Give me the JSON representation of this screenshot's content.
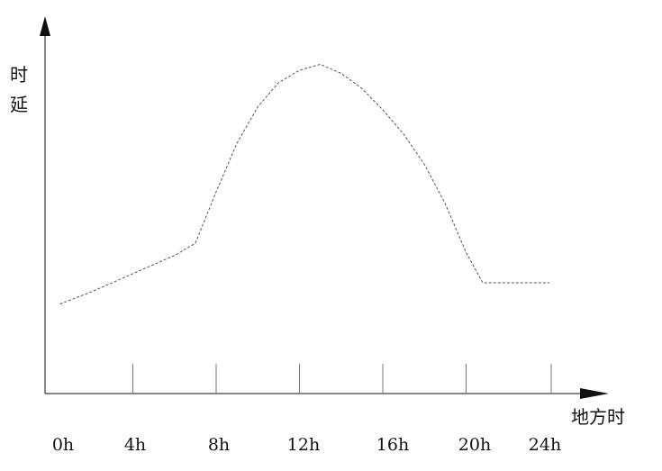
{
  "chart_data": {
    "type": "line",
    "title": "",
    "xlabel": "地方时",
    "ylabel": "时延",
    "x_tick_labels": [
      "0h",
      "4h",
      "8h",
      "12h",
      "16h",
      "20h",
      "24h"
    ],
    "x_ticks": [
      0,
      4,
      8,
      12,
      16,
      20,
      24
    ],
    "xlim": [
      0,
      24
    ],
    "y_ticks_shown": false,
    "grid": false,
    "legend": "none",
    "line_style": "dashed",
    "line_color": "#555555",
    "axis_color": "#111111",
    "series": [
      {
        "x": [
          0.5,
          2,
          4,
          6,
          7,
          8,
          9,
          10,
          11,
          12,
          13,
          14,
          15,
          16,
          17,
          18,
          19,
          20,
          20.8,
          22,
          23.5,
          24
        ],
        "values": [
          0.2,
          0.24,
          0.3,
          0.36,
          0.4,
          0.57,
          0.73,
          0.85,
          0.93,
          0.97,
          0.99,
          0.96,
          0.91,
          0.84,
          0.76,
          0.66,
          0.53,
          0.37,
          0.27,
          0.27,
          0.27,
          0.27
        ]
      }
    ]
  }
}
